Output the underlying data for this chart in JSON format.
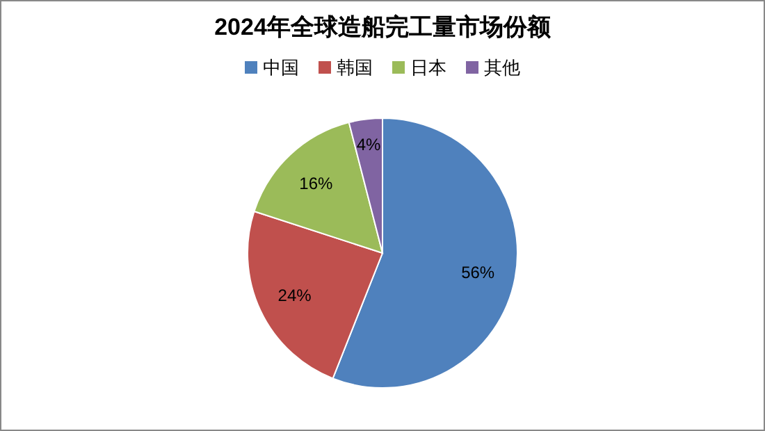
{
  "chart_data": {
    "type": "pie",
    "title": "2024年全球造船完工量市场份额",
    "categories": [
      "中国",
      "韩国",
      "日本",
      "其他"
    ],
    "values": [
      56,
      24,
      16,
      4
    ],
    "colors": [
      "#4f81bd",
      "#c0504d",
      "#9bbb59",
      "#8064a2"
    ],
    "legend": "top",
    "value_labels": [
      "56%",
      "24%",
      "16%",
      "4%"
    ]
  }
}
